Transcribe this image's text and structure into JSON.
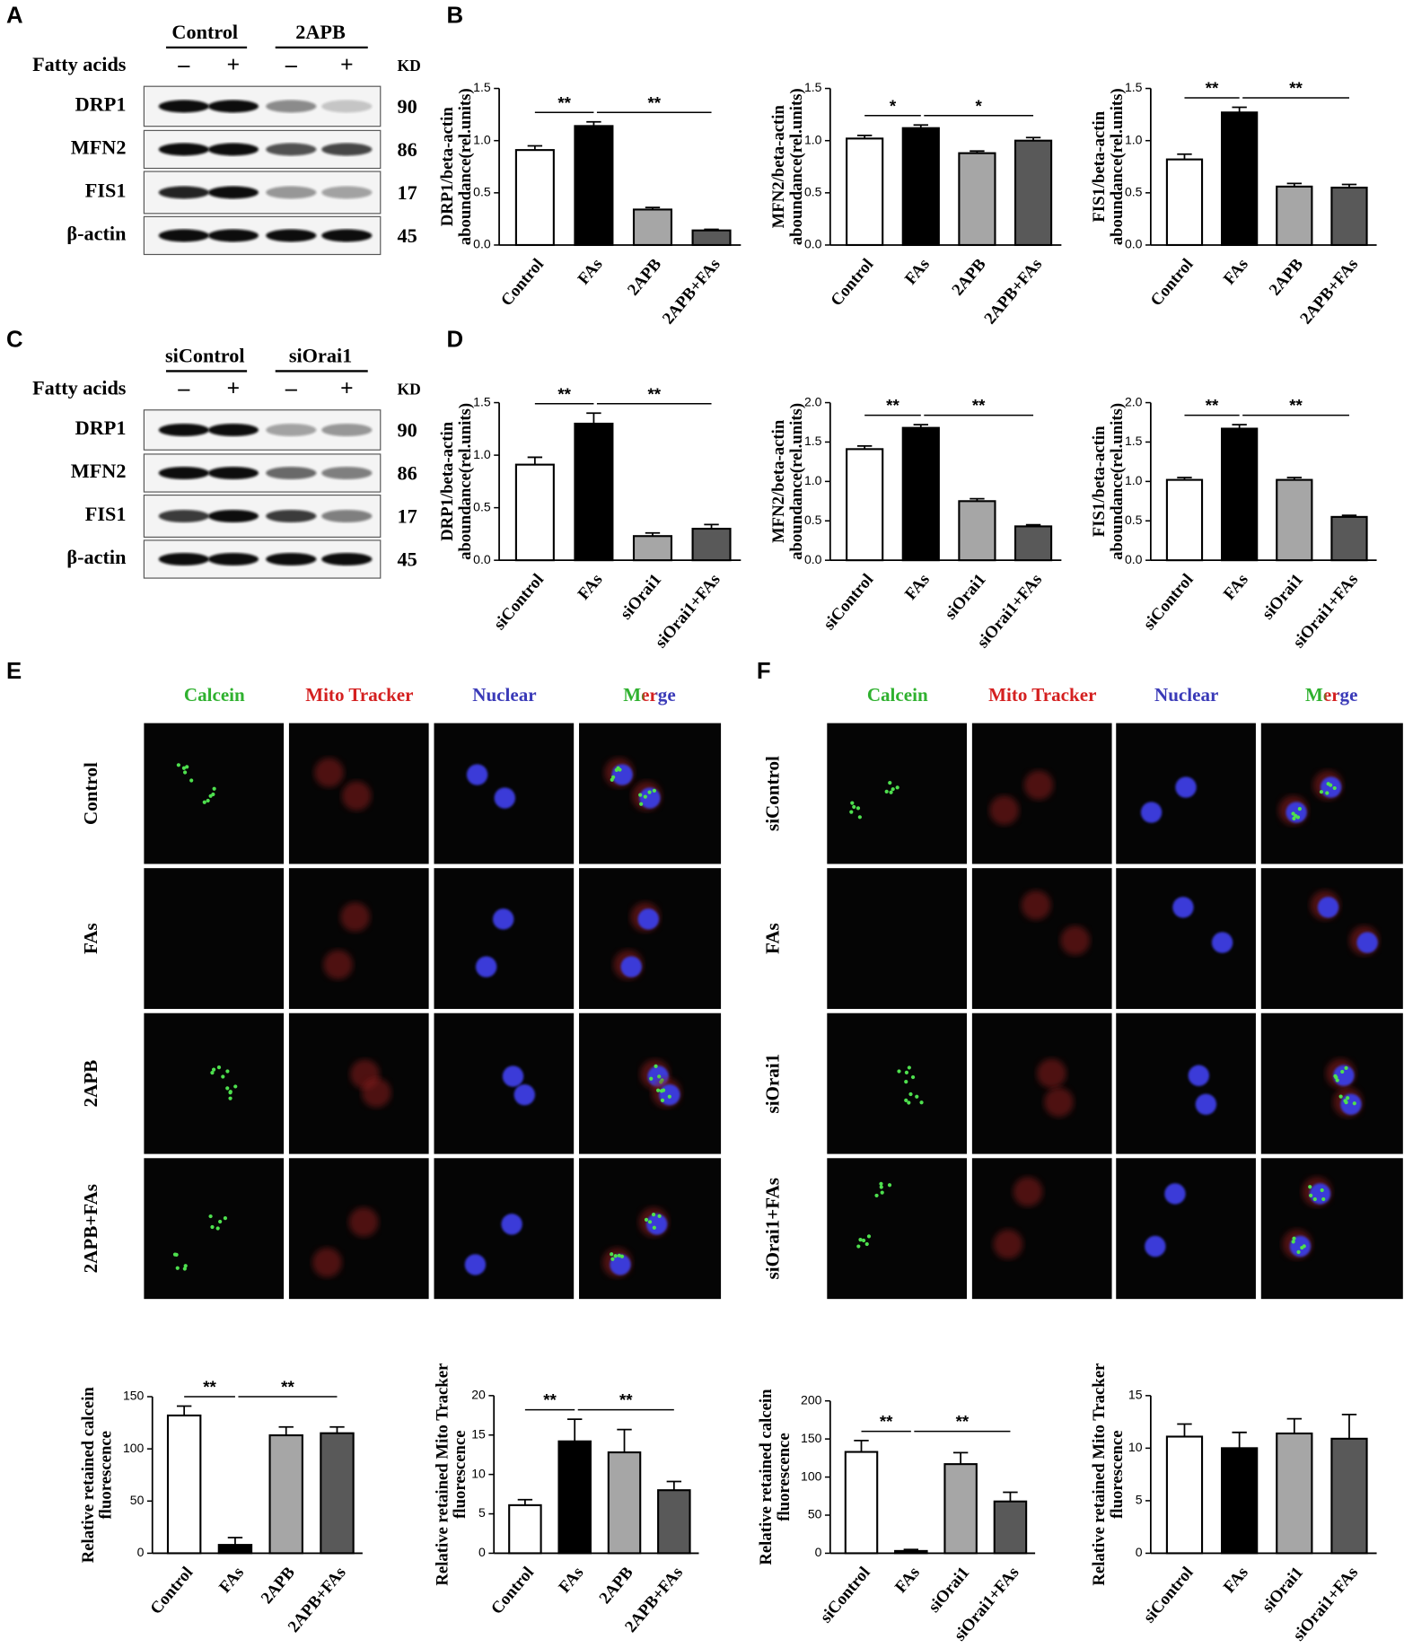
{
  "panel_labels": [
    "A",
    "B",
    "C",
    "D",
    "E",
    "F"
  ],
  "blots": [
    {
      "groups": [
        "Control",
        "2APB"
      ],
      "treatment": "Fatty acids",
      "lanes": [
        "–",
        "+",
        "–",
        "+"
      ],
      "unit": "KD",
      "proteins": [
        {
          "name": "DRP1",
          "kd": 90
        },
        {
          "name": "MFN2",
          "kd": 86
        },
        {
          "name": "FIS1",
          "kd": 17
        },
        {
          "name": "β-actin",
          "kd": 45
        }
      ]
    },
    {
      "groups": [
        "siControl",
        "siOrai1"
      ],
      "treatment": "Fatty acids",
      "lanes": [
        "–",
        "+",
        "–",
        "+"
      ],
      "unit": "KD",
      "proteins": [
        {
          "name": "DRP1",
          "kd": 90
        },
        {
          "name": "MFN2",
          "kd": 86
        },
        {
          "name": "FIS1",
          "kd": 17
        },
        {
          "name": "β-actin",
          "kd": 45
        }
      ]
    }
  ],
  "micrographs": [
    {
      "channels": [
        "Calcein",
        "Mito Tracker",
        "Nuclear",
        "Merge"
      ],
      "conditions": [
        "Control",
        "FAs",
        "2APB",
        "2APB+FAs"
      ]
    },
    {
      "channels": [
        "Calcein",
        "Mito Tracker",
        "Nuclear",
        "Merge"
      ],
      "conditions": [
        "siControl",
        "FAs",
        "siOrai1",
        "siOrai1+FAs"
      ]
    }
  ],
  "chart_data": [
    {
      "type": "bar",
      "ylabel": [
        "DRP1/beta-actin",
        "aboundance(rel.units)"
      ],
      "categories": [
        "Control",
        "FAs",
        "2APB",
        "2APB+FAs"
      ],
      "values": [
        0.91,
        1.14,
        0.34,
        0.14
      ],
      "errors": [
        0.04,
        0.04,
        0.02,
        0.01
      ],
      "colors": [
        "#ffffff",
        "#000000",
        "#a6a6a6",
        "#595959"
      ],
      "ylim": [
        0,
        1.5
      ],
      "yticks": [
        {
          "value": 0,
          "label": "0.0"
        },
        0.5,
        {
          "value": 1,
          "label": "1.0"
        },
        1.5
      ],
      "significance": [
        {
          "from": 0,
          "to": 1,
          "label": "**"
        },
        {
          "from": 1,
          "to": 3,
          "label": "**"
        }
      ]
    },
    {
      "type": "bar",
      "ylabel": [
        "MFN2/beta-actin",
        "aboundance(rel.units)"
      ],
      "categories": [
        "Control",
        "FAs",
        "2APB",
        "2APB+FAs"
      ],
      "values": [
        1.02,
        1.12,
        0.88,
        1.0
      ],
      "errors": [
        0.03,
        0.03,
        0.02,
        0.03
      ],
      "colors": [
        "#ffffff",
        "#000000",
        "#a6a6a6",
        "#595959"
      ],
      "ylim": [
        0,
        1.5
      ],
      "yticks": [
        {
          "value": 0,
          "label": "0.0"
        },
        0.5,
        {
          "value": 1,
          "label": "1.0"
        },
        1.5
      ],
      "significance": [
        {
          "from": 0,
          "to": 1,
          "label": "*"
        },
        {
          "from": 1,
          "to": 3,
          "label": "*"
        }
      ]
    },
    {
      "type": "bar",
      "ylabel": [
        "FIS1/beta-actin",
        "aboundance(rel.units)"
      ],
      "categories": [
        "Control",
        "FAs",
        "2APB",
        "2APB+FAs"
      ],
      "values": [
        0.82,
        1.27,
        0.56,
        0.55
      ],
      "errors": [
        0.05,
        0.05,
        0.03,
        0.03
      ],
      "colors": [
        "#ffffff",
        "#000000",
        "#a6a6a6",
        "#595959"
      ],
      "ylim": [
        0,
        1.5
      ],
      "yticks": [
        {
          "value": 0,
          "label": "0.0"
        },
        0.5,
        {
          "value": 1,
          "label": "1.0"
        },
        1.5
      ],
      "significance": [
        {
          "from": 0,
          "to": 1,
          "label": "**"
        },
        {
          "from": 1,
          "to": 3,
          "label": "**"
        }
      ]
    },
    {
      "type": "bar",
      "ylabel": [
        "DRP1/beta-actin",
        "aboundance(rel.units)"
      ],
      "categories": [
        "siControl",
        "FAs",
        "siOrai1",
        "siOrai1+FAs"
      ],
      "values": [
        0.91,
        1.3,
        0.23,
        0.3
      ],
      "errors": [
        0.07,
        0.1,
        0.03,
        0.04
      ],
      "colors": [
        "#ffffff",
        "#000000",
        "#a6a6a6",
        "#595959"
      ],
      "ylim": [
        0,
        1.5
      ],
      "yticks": [
        {
          "value": 0,
          "label": "0.0"
        },
        0.5,
        {
          "value": 1,
          "label": "1.0"
        },
        1.5
      ],
      "significance": [
        {
          "from": 0,
          "to": 1,
          "label": "**"
        },
        {
          "from": 1,
          "to": 3,
          "label": "**"
        }
      ]
    },
    {
      "type": "bar",
      "ylabel": [
        "MFN2/beta-actin",
        "aboundance(rel.units)"
      ],
      "categories": [
        "siControl",
        "FAs",
        "siOrai1",
        "siOrai1+FAs"
      ],
      "values": [
        1.41,
        1.68,
        0.75,
        0.43
      ],
      "errors": [
        0.04,
        0.04,
        0.03,
        0.02
      ],
      "colors": [
        "#ffffff",
        "#000000",
        "#a6a6a6",
        "#595959"
      ],
      "ylim": [
        0,
        2
      ],
      "yticks": [
        {
          "value": 0,
          "label": "0.0"
        },
        0.5,
        {
          "value": 1,
          "label": "1.0"
        },
        1.5,
        {
          "value": 2,
          "label": "2.0"
        }
      ],
      "significance": [
        {
          "from": 0,
          "to": 1,
          "label": "**"
        },
        {
          "from": 1,
          "to": 3,
          "label": "**"
        }
      ]
    },
    {
      "type": "bar",
      "ylabel": [
        "FIS1/beta-actin",
        "aboundance(rel.units)"
      ],
      "categories": [
        "siControl",
        "FAs",
        "siOrai1",
        "siOrai1+FAs"
      ],
      "values": [
        1.02,
        1.67,
        1.02,
        0.55
      ],
      "errors": [
        0.03,
        0.05,
        0.03,
        0.02
      ],
      "colors": [
        "#ffffff",
        "#000000",
        "#a6a6a6",
        "#595959"
      ],
      "ylim": [
        0,
        2
      ],
      "yticks": [
        {
          "value": 0,
          "label": "0.0"
        },
        0.5,
        {
          "value": 1,
          "label": "1.0"
        },
        1.5,
        {
          "value": 2,
          "label": "2.0"
        }
      ],
      "significance": [
        {
          "from": 0,
          "to": 1,
          "label": "**"
        },
        {
          "from": 1,
          "to": 3,
          "label": "**"
        }
      ]
    },
    {
      "type": "bar",
      "ylabel": [
        "Relative retained calcein",
        "fluorescence"
      ],
      "categories": [
        "Control",
        "FAs",
        "2APB",
        "2APB+FAs"
      ],
      "values": [
        132,
        8,
        113,
        115
      ],
      "errors": [
        9,
        7,
        8,
        6
      ],
      "colors": [
        "#ffffff",
        "#000000",
        "#a6a6a6",
        "#595959"
      ],
      "ylim": [
        0,
        150
      ],
      "yticks": [
        0,
        50,
        100,
        150
      ],
      "significance": [
        {
          "from": 0,
          "to": 1,
          "label": "**"
        },
        {
          "from": 1,
          "to": 3,
          "label": "**"
        }
      ]
    },
    {
      "type": "bar",
      "ylabel": [
        "Relative retained Mito Tracker",
        "fluorescence"
      ],
      "categories": [
        "Control",
        "FAs",
        "2APB",
        "2APB+FAs"
      ],
      "values": [
        6.1,
        14.2,
        12.8,
        8.0
      ],
      "errors": [
        0.7,
        2.8,
        2.9,
        1.1
      ],
      "colors": [
        "#ffffff",
        "#000000",
        "#a6a6a6",
        "#595959"
      ],
      "ylim": [
        0,
        20
      ],
      "yticks": [
        0,
        5,
        10,
        15,
        20
      ],
      "significance": [
        {
          "from": 0,
          "to": 1,
          "label": "**"
        },
        {
          "from": 1,
          "to": 3,
          "label": "**"
        }
      ]
    },
    {
      "type": "bar",
      "ylabel": [
        "Relative retained calcein",
        "fluorescence"
      ],
      "categories": [
        "siControl",
        "FAs",
        "siOrai1",
        "siOrai1+FAs"
      ],
      "values": [
        133,
        3,
        117,
        68
      ],
      "errors": [
        15,
        2,
        15,
        12
      ],
      "colors": [
        "#ffffff",
        "#000000",
        "#a6a6a6",
        "#595959"
      ],
      "ylim": [
        0,
        200
      ],
      "yticks": [
        0,
        50,
        100,
        150,
        200
      ],
      "significance": [
        {
          "from": 0,
          "to": 1,
          "label": "**"
        },
        {
          "from": 1,
          "to": 3,
          "label": "**"
        }
      ]
    },
    {
      "type": "bar",
      "ylabel": [
        "Relative retained Mito Tracker",
        "fluorescence"
      ],
      "categories": [
        "siControl",
        "FAs",
        "siOrai1",
        "siOrai1+FAs"
      ],
      "values": [
        11.1,
        10.0,
        11.4,
        10.9
      ],
      "errors": [
        1.2,
        1.5,
        1.4,
        2.3
      ],
      "colors": [
        "#ffffff",
        "#000000",
        "#a6a6a6",
        "#595959"
      ],
      "ylim": [
        0,
        15
      ],
      "yticks": [
        0,
        5,
        10,
        15
      ],
      "significance": []
    }
  ]
}
